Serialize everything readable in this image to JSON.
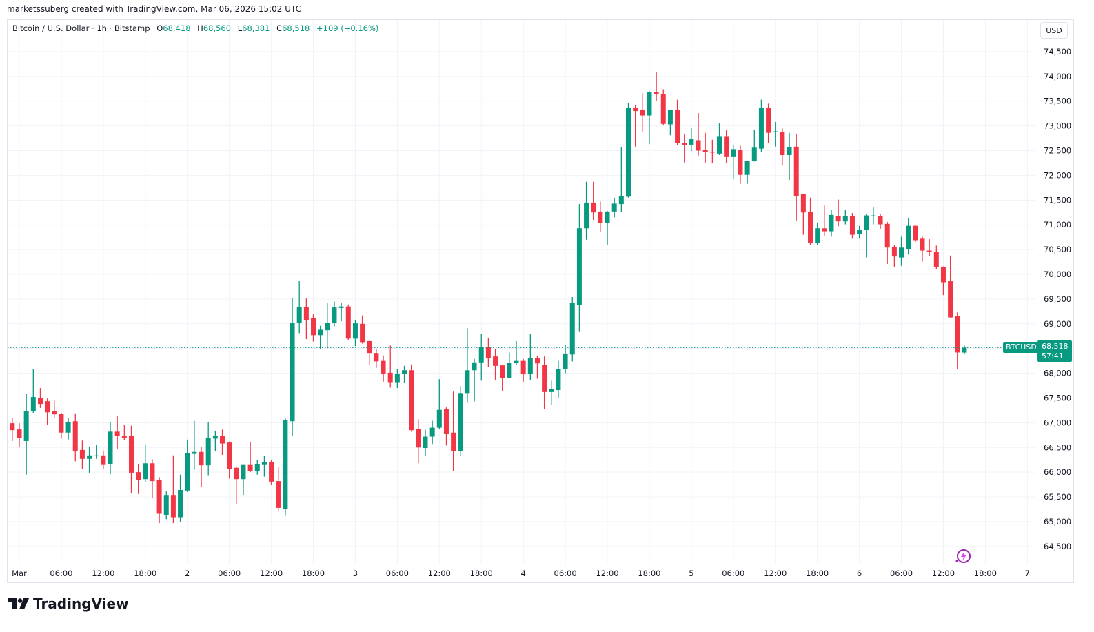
{
  "credit": "marketssuberg created with TradingView.com, Mar 06, 2026 15:02 UTC",
  "legend": {
    "symbol": "Bitcoin / U.S. Dollar · 1h · Bitstamp",
    "o_label": "O",
    "o": "68,418",
    "h_label": "H",
    "h": "68,560",
    "l_label": "L",
    "l": "68,381",
    "c_label": "C",
    "c": "68,518",
    "change": "+109 (+0.16%)"
  },
  "currency_button": "USD",
  "last_price": {
    "symbol": "BTCUSD",
    "price": "68,518",
    "countdown": "57:41",
    "value": 68518
  },
  "logo": {
    "text": "TradingView"
  },
  "colors": {
    "up": "#089981",
    "down": "#F23645",
    "grid": "#f0f3fa",
    "text": "#131722"
  },
  "icons": {
    "logo": "tradingview-logo-icon",
    "bolt": "lightning-icon"
  },
  "chart_data": {
    "type": "candlestick",
    "title": "Bitcoin / U.S. Dollar · 1h · Bitstamp",
    "ylim": [
      64150,
      75140
    ],
    "grid": true,
    "y_ticks": [
      64500,
      65000,
      65500,
      66000,
      66500,
      67000,
      67500,
      68000,
      68500,
      69000,
      69500,
      70000,
      70500,
      71000,
      71500,
      72000,
      72500,
      73000,
      73500,
      74000,
      74500
    ],
    "y_tick_labels": [
      "64,500",
      "65,000",
      "65,500",
      "66,000",
      "66,500",
      "67,000",
      "67,500",
      "68,000",
      "68,500",
      "69,000",
      "69,500",
      "70,000",
      "70,500",
      "71,000",
      "71,500",
      "72,000",
      "72,500",
      "73,000",
      "73,500",
      "74,000",
      "74,500"
    ],
    "x_ticks": [
      {
        "label": "Mar",
        "time": "2026-03-01 00:00"
      },
      {
        "label": "06:00",
        "time": "2026-03-01 06:00"
      },
      {
        "label": "12:00",
        "time": "2026-03-01 12:00"
      },
      {
        "label": "18:00",
        "time": "2026-03-01 18:00"
      },
      {
        "label": "2",
        "time": "2026-03-02 00:00"
      },
      {
        "label": "06:00",
        "time": "2026-03-02 06:00"
      },
      {
        "label": "12:00",
        "time": "2026-03-02 12:00"
      },
      {
        "label": "18:00",
        "time": "2026-03-02 18:00"
      },
      {
        "label": "3",
        "time": "2026-03-03 00:00"
      },
      {
        "label": "06:00",
        "time": "2026-03-03 06:00"
      },
      {
        "label": "12:00",
        "time": "2026-03-03 12:00"
      },
      {
        "label": "18:00",
        "time": "2026-03-03 18:00"
      },
      {
        "label": "4",
        "time": "2026-03-04 00:00"
      },
      {
        "label": "06:00",
        "time": "2026-03-04 06:00"
      },
      {
        "label": "12:00",
        "time": "2026-03-04 12:00"
      },
      {
        "label": "18:00",
        "time": "2026-03-04 18:00"
      },
      {
        "label": "5",
        "time": "2026-03-05 00:00"
      },
      {
        "label": "06:00",
        "time": "2026-03-05 06:00"
      },
      {
        "label": "12:00",
        "time": "2026-03-05 12:00"
      },
      {
        "label": "18:00",
        "time": "2026-03-05 18:00"
      },
      {
        "label": "6",
        "time": "2026-03-06 00:00"
      },
      {
        "label": "06:00",
        "time": "2026-03-06 06:00"
      },
      {
        "label": "12:00",
        "time": "2026-03-06 12:00"
      },
      {
        "label": "18:00",
        "time": "2026-03-06 18:00"
      },
      {
        "label": "7",
        "time": "2026-03-07 00:00"
      }
    ],
    "candle_fields": [
      "time",
      "open",
      "high",
      "low",
      "close"
    ],
    "candles": [
      [
        "2026-02-28 23:00",
        66990,
        67100,
        66630,
        66850
      ],
      [
        "2026-03-01 00:00",
        66865,
        66990,
        66500,
        66685
      ],
      [
        "2026-03-01 01:00",
        66630,
        67590,
        65950,
        67240
      ],
      [
        "2026-03-01 02:00",
        67240,
        68090,
        67200,
        67520
      ],
      [
        "2026-03-01 03:00",
        67500,
        67700,
        67300,
        67380
      ],
      [
        "2026-03-01 04:00",
        67435,
        67490,
        66960,
        67210
      ],
      [
        "2026-03-01 05:00",
        67230,
        67450,
        67090,
        67170
      ],
      [
        "2026-03-01 06:00",
        67185,
        67200,
        66680,
        66800
      ],
      [
        "2026-03-01 07:00",
        66800,
        67100,
        66660,
        67020
      ],
      [
        "2026-03-01 08:00",
        67030,
        67190,
        66220,
        66420
      ],
      [
        "2026-03-01 09:00",
        66450,
        66640,
        66070,
        66270
      ],
      [
        "2026-03-01 10:00",
        66270,
        66520,
        65990,
        66340
      ],
      [
        "2026-03-01 11:00",
        66340,
        66550,
        66270,
        66340
      ],
      [
        "2026-03-01 12:00",
        66340,
        66440,
        66070,
        66160
      ],
      [
        "2026-03-01 13:00",
        66170,
        67020,
        65960,
        66820
      ],
      [
        "2026-03-01 14:00",
        66820,
        67140,
        66470,
        66740
      ],
      [
        "2026-03-01 15:00",
        66740,
        66960,
        66650,
        66700
      ],
      [
        "2026-03-01 16:00",
        66740,
        66940,
        65570,
        65990
      ],
      [
        "2026-03-01 17:00",
        66000,
        66170,
        65560,
        65840
      ],
      [
        "2026-03-01 18:00",
        65860,
        66560,
        65800,
        66180
      ],
      [
        "2026-03-01 19:00",
        66180,
        66260,
        65480,
        65820
      ],
      [
        "2026-03-01 20:00",
        65840,
        65900,
        64970,
        65160
      ],
      [
        "2026-03-01 21:00",
        65140,
        65610,
        65050,
        65540
      ],
      [
        "2026-03-01 22:00",
        65540,
        66340,
        64970,
        65090
      ],
      [
        "2026-03-01 23:00",
        65090,
        65950,
        64990,
        65640
      ],
      [
        "2026-03-02 00:00",
        65630,
        66660,
        65600,
        66380
      ],
      [
        "2026-03-02 01:00",
        66370,
        67040,
        66050,
        66410
      ],
      [
        "2026-03-02 02:00",
        66410,
        66510,
        65700,
        66140
      ],
      [
        "2026-03-02 03:00",
        66140,
        67010,
        65940,
        66700
      ],
      [
        "2026-03-02 04:00",
        66680,
        66840,
        66430,
        66740
      ],
      [
        "2026-03-02 05:00",
        66740,
        66860,
        66350,
        66580
      ],
      [
        "2026-03-02 06:00",
        66600,
        66620,
        65870,
        66070
      ],
      [
        "2026-03-02 07:00",
        66090,
        66100,
        65360,
        65860
      ],
      [
        "2026-03-02 08:00",
        65860,
        66160,
        65540,
        66160
      ],
      [
        "2026-03-02 09:00",
        66160,
        66610,
        66000,
        66030
      ],
      [
        "2026-03-02 10:00",
        66030,
        66250,
        65950,
        66170
      ],
      [
        "2026-03-02 11:00",
        66160,
        66330,
        65910,
        66210
      ],
      [
        "2026-03-02 12:00",
        66210,
        66240,
        65750,
        65810
      ],
      [
        "2026-03-02 13:00",
        65820,
        66100,
        65220,
        65280
      ],
      [
        "2026-03-02 14:00",
        65250,
        67100,
        65130,
        67050
      ],
      [
        "2026-03-02 15:00",
        67030,
        69520,
        66740,
        69020
      ],
      [
        "2026-03-02 16:00",
        69020,
        69870,
        68810,
        69340
      ],
      [
        "2026-03-02 17:00",
        69340,
        69510,
        68690,
        69080
      ],
      [
        "2026-03-02 18:00",
        69110,
        69190,
        68640,
        68770
      ],
      [
        "2026-03-02 19:00",
        68770,
        68960,
        68490,
        68880
      ],
      [
        "2026-03-02 20:00",
        68870,
        69420,
        68500,
        69020
      ],
      [
        "2026-03-02 21:00",
        69020,
        69450,
        68950,
        69330
      ],
      [
        "2026-03-02 22:00",
        69320,
        69420,
        69050,
        69350
      ],
      [
        "2026-03-02 23:00",
        69350,
        69390,
        68670,
        68700
      ],
      [
        "2026-03-03 00:00",
        68700,
        69070,
        68550,
        69010
      ],
      [
        "2026-03-03 01:00",
        69000,
        69170,
        68600,
        68630
      ],
      [
        "2026-03-03 02:00",
        68650,
        68680,
        68170,
        68410
      ],
      [
        "2026-03-03 03:00",
        68410,
        68490,
        68110,
        68240
      ],
      [
        "2026-03-03 04:00",
        68250,
        68360,
        67830,
        67990
      ],
      [
        "2026-03-03 05:00",
        68010,
        68560,
        67710,
        67820
      ],
      [
        "2026-03-03 06:00",
        67820,
        68080,
        67700,
        67990
      ],
      [
        "2026-03-03 07:00",
        67990,
        68150,
        67810,
        68060
      ],
      [
        "2026-03-03 08:00",
        68060,
        68180,
        66820,
        66850
      ],
      [
        "2026-03-03 09:00",
        66870,
        67070,
        66180,
        66500
      ],
      [
        "2026-03-03 10:00",
        66490,
        66860,
        66330,
        66720
      ],
      [
        "2026-03-03 11:00",
        66720,
        67040,
        66570,
        66900
      ],
      [
        "2026-03-03 12:00",
        66900,
        67880,
        66880,
        67260
      ],
      [
        "2026-03-03 13:00",
        67270,
        67310,
        66540,
        66780
      ],
      [
        "2026-03-03 14:00",
        66800,
        67630,
        66020,
        66420
      ],
      [
        "2026-03-03 15:00",
        66420,
        67740,
        66330,
        67600
      ],
      [
        "2026-03-03 16:00",
        67600,
        68910,
        67400,
        68060
      ],
      [
        "2026-03-03 17:00",
        68060,
        68290,
        67430,
        68220
      ],
      [
        "2026-03-03 18:00",
        68220,
        68800,
        67850,
        68530
      ],
      [
        "2026-03-03 19:00",
        68530,
        68720,
        68130,
        68300
      ],
      [
        "2026-03-03 20:00",
        68340,
        68490,
        67870,
        68150
      ],
      [
        "2026-03-03 21:00",
        68160,
        68170,
        67640,
        67910
      ],
      [
        "2026-03-03 22:00",
        67910,
        68420,
        67900,
        68210
      ],
      [
        "2026-03-03 23:00",
        68210,
        68650,
        68170,
        68250
      ],
      [
        "2026-03-04 00:00",
        68250,
        68290,
        67830,
        67980
      ],
      [
        "2026-03-04 01:00",
        67980,
        68790,
        67860,
        68310
      ],
      [
        "2026-03-04 02:00",
        68310,
        68360,
        67890,
        68200
      ],
      [
        "2026-03-04 03:00",
        68170,
        68340,
        67280,
        67620
      ],
      [
        "2026-03-04 04:00",
        67620,
        67850,
        67360,
        67680
      ],
      [
        "2026-03-04 05:00",
        67660,
        68250,
        67510,
        68090
      ],
      [
        "2026-03-04 06:00",
        68090,
        68570,
        68000,
        68400
      ],
      [
        "2026-03-04 07:00",
        68380,
        69540,
        68240,
        69420
      ],
      [
        "2026-03-04 08:00",
        69380,
        71420,
        68850,
        70930
      ],
      [
        "2026-03-04 09:00",
        70930,
        71870,
        70700,
        71450
      ],
      [
        "2026-03-04 10:00",
        71450,
        71870,
        71100,
        71250
      ],
      [
        "2026-03-04 11:00",
        71270,
        71470,
        70850,
        71040
      ],
      [
        "2026-03-04 12:00",
        71040,
        71280,
        70600,
        71270
      ],
      [
        "2026-03-04 13:00",
        71270,
        71540,
        71150,
        71430
      ],
      [
        "2026-03-04 14:00",
        71420,
        72570,
        71260,
        71580
      ],
      [
        "2026-03-04 15:00",
        71570,
        73460,
        71550,
        73370
      ],
      [
        "2026-03-04 16:00",
        73370,
        73420,
        72580,
        73300
      ],
      [
        "2026-03-04 17:00",
        73330,
        73660,
        72870,
        73210
      ],
      [
        "2026-03-04 18:00",
        73210,
        73700,
        72630,
        73690
      ],
      [
        "2026-03-04 19:00",
        73690,
        74080,
        73510,
        73640
      ],
      [
        "2026-03-04 20:00",
        73640,
        73740,
        73020,
        73040
      ],
      [
        "2026-03-04 21:00",
        73030,
        73330,
        72810,
        73320
      ],
      [
        "2026-03-04 22:00",
        73320,
        73530,
        72610,
        72650
      ],
      [
        "2026-03-04 23:00",
        72660,
        72830,
        72260,
        72620
      ],
      [
        "2026-03-05 00:00",
        72620,
        72970,
        72490,
        72730
      ],
      [
        "2026-03-05 01:00",
        72710,
        73260,
        72400,
        72500
      ],
      [
        "2026-03-05 02:00",
        72510,
        72860,
        72250,
        72470
      ],
      [
        "2026-03-05 03:00",
        72480,
        72720,
        72250,
        72460
      ],
      [
        "2026-03-05 04:00",
        72440,
        73050,
        72410,
        72780
      ],
      [
        "2026-03-05 05:00",
        72780,
        72910,
        72250,
        72370
      ],
      [
        "2026-03-05 06:00",
        72370,
        72620,
        71920,
        72530
      ],
      [
        "2026-03-05 07:00",
        72510,
        72600,
        71830,
        72010
      ],
      [
        "2026-03-05 08:00",
        72010,
        72300,
        71830,
        72290
      ],
      [
        "2026-03-05 09:00",
        72290,
        72920,
        72280,
        72560
      ],
      [
        "2026-03-05 10:00",
        72540,
        73530,
        72480,
        73360
      ],
      [
        "2026-03-05 11:00",
        73360,
        73450,
        72650,
        72860
      ],
      [
        "2026-03-05 12:00",
        72890,
        73080,
        72580,
        72890
      ],
      [
        "2026-03-05 13:00",
        72870,
        72950,
        72200,
        72410
      ],
      [
        "2026-03-05 14:00",
        72410,
        72860,
        71910,
        72570
      ],
      [
        "2026-03-05 15:00",
        72580,
        72830,
        71090,
        71580
      ],
      [
        "2026-03-05 16:00",
        71620,
        71630,
        70800,
        71250
      ],
      [
        "2026-03-05 17:00",
        71260,
        71550,
        70590,
        70630
      ],
      [
        "2026-03-05 18:00",
        70630,
        71040,
        70590,
        70930
      ],
      [
        "2026-03-05 19:00",
        70930,
        71390,
        70780,
        70870
      ],
      [
        "2026-03-05 20:00",
        70870,
        71310,
        70760,
        71200
      ],
      [
        "2026-03-05 21:00",
        71170,
        71510,
        70970,
        71070
      ],
      [
        "2026-03-05 22:00",
        71070,
        71300,
        71010,
        71180
      ],
      [
        "2026-03-05 23:00",
        71170,
        71240,
        70720,
        70800
      ],
      [
        "2026-03-06 00:00",
        70820,
        70980,
        70720,
        70900
      ],
      [
        "2026-03-06 01:00",
        70900,
        71220,
        70340,
        71190
      ],
      [
        "2026-03-06 02:00",
        71190,
        71350,
        71010,
        71190
      ],
      [
        "2026-03-06 03:00",
        71180,
        71220,
        70920,
        71010
      ],
      [
        "2026-03-06 04:00",
        71020,
        71060,
        70210,
        70540
      ],
      [
        "2026-03-06 05:00",
        70550,
        70590,
        70140,
        70360
      ],
      [
        "2026-03-06 06:00",
        70340,
        70760,
        70170,
        70540
      ],
      [
        "2026-03-06 07:00",
        70510,
        71140,
        70400,
        70980
      ],
      [
        "2026-03-06 08:00",
        70980,
        71000,
        70650,
        70690
      ],
      [
        "2026-03-06 09:00",
        70720,
        70760,
        70260,
        70480
      ],
      [
        "2026-03-06 10:00",
        70480,
        70710,
        70370,
        70450
      ],
      [
        "2026-03-06 11:00",
        70450,
        70580,
        70100,
        70150
      ],
      [
        "2026-03-06 12:00",
        70150,
        70160,
        69580,
        69840
      ],
      [
        "2026-03-06 13:00",
        69860,
        70380,
        69120,
        69130
      ],
      [
        "2026-03-06 14:00",
        69150,
        69230,
        68080,
        68420
      ],
      [
        "2026-03-06 15:00",
        68418,
        68560,
        68381,
        68518
      ]
    ]
  }
}
